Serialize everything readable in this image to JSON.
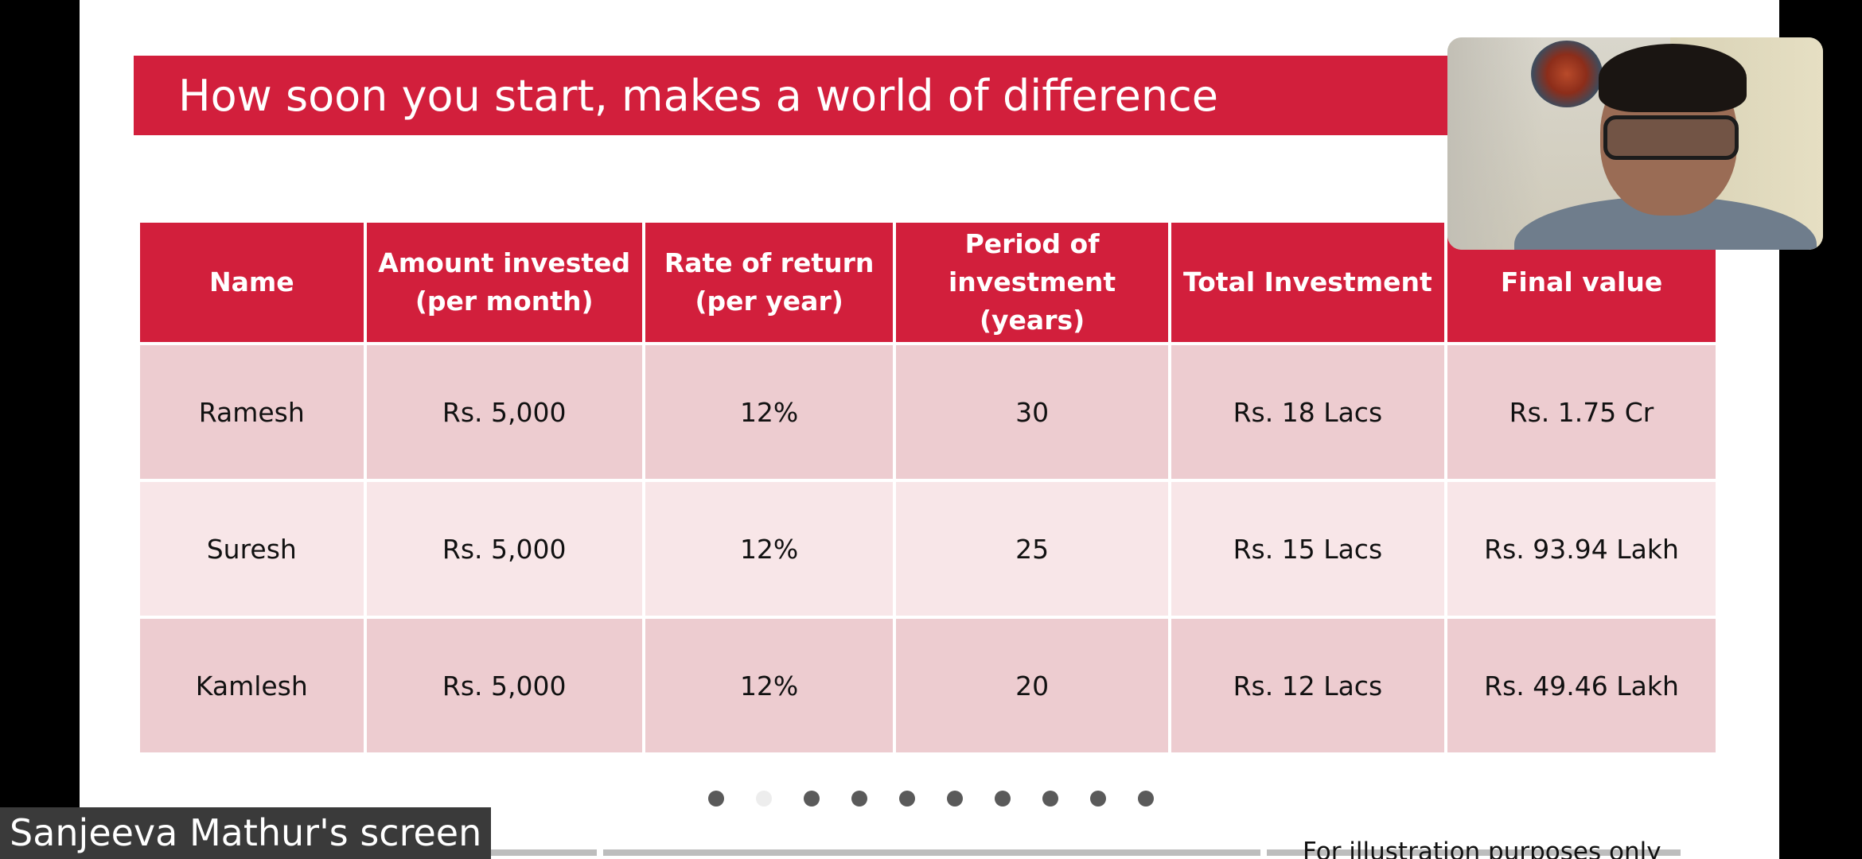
{
  "slide": {
    "title": "How soon you start, makes a world of difference",
    "footnote": "For illustration purposes only"
  },
  "table": {
    "headers": [
      "Name",
      "Amount invested\n(per month)",
      "Rate of return\n(per year)",
      "Period of\ninvestment\n(years)",
      "Total Investment",
      "Final value"
    ],
    "rows": [
      [
        "Ramesh",
        "Rs. 5,000",
        "12%",
        "30",
        "Rs. 18 Lacs",
        "Rs. 1.75 Cr"
      ],
      [
        "Suresh",
        "Rs. 5,000",
        "12%",
        "25",
        "Rs. 15 Lacs",
        "Rs. 93.94 Lakh"
      ],
      [
        "Kamlesh",
        "Rs. 5,000",
        "12%",
        "20",
        "Rs. 12 Lacs",
        "Rs. 49.46 Lakh"
      ]
    ]
  },
  "pager": {
    "total": 10,
    "current": 2
  },
  "share": {
    "label": "Sanjeeva Mathur's screen"
  },
  "colors": {
    "accent": "#d21f3c",
    "row_dark": "#edccd0",
    "row_light": "#f8e6e8"
  }
}
